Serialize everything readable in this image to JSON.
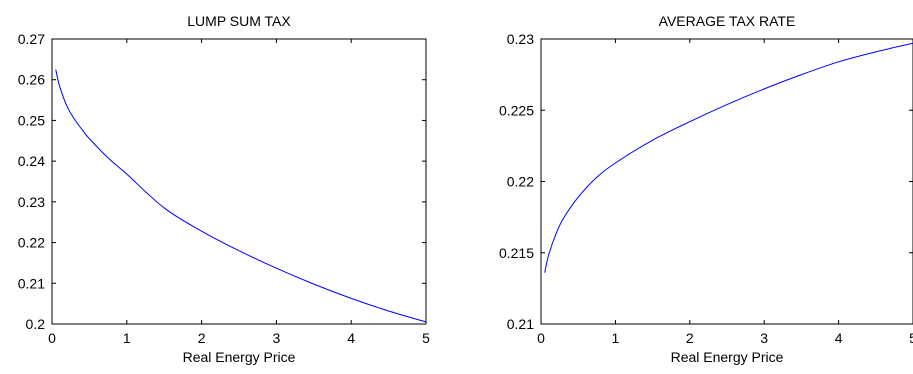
{
  "chart_data": [
    {
      "type": "line",
      "title": "LUMP SUM TAX",
      "xlabel": "Real Energy Price",
      "ylabel": "",
      "xlim": [
        0,
        5
      ],
      "ylim": [
        0.2,
        0.27
      ],
      "x_ticks": [
        0,
        1,
        2,
        3,
        4,
        5
      ],
      "x_tick_labels": [
        "0",
        "1",
        "2",
        "3",
        "4",
        "5"
      ],
      "y_ticks": [
        0.2,
        0.21,
        0.22,
        0.23,
        0.24,
        0.25,
        0.26,
        0.27
      ],
      "y_tick_labels": [
        "0.2",
        "0.21",
        "0.22",
        "0.23",
        "0.24",
        "0.25",
        "0.26",
        "0.27"
      ],
      "grid": false,
      "series": [
        {
          "color": "#0000ff",
          "x": [
            0.05,
            0.1,
            0.2,
            0.3,
            0.4,
            0.5,
            0.75,
            1,
            1.5,
            2,
            2.5,
            3,
            3.5,
            4,
            4.5,
            5
          ],
          "y": [
            0.2625,
            0.2585,
            0.2535,
            0.2503,
            0.2478,
            0.2455,
            0.2408,
            0.2368,
            0.2285,
            0.2228,
            0.218,
            0.2137,
            0.2098,
            0.2063,
            0.2032,
            0.2005
          ]
        }
      ]
    },
    {
      "type": "line",
      "title": "AVERAGE TAX RATE",
      "xlabel": "Real Energy Price",
      "ylabel": "",
      "xlim": [
        0,
        5
      ],
      "ylim": [
        0.21,
        0.23
      ],
      "x_ticks": [
        0,
        1,
        2,
        3,
        4,
        5
      ],
      "x_tick_labels": [
        "0",
        "1",
        "2",
        "3",
        "4",
        "5"
      ],
      "y_ticks": [
        0.21,
        0.215,
        0.22,
        0.225,
        0.23
      ],
      "y_tick_labels": [
        "0.21",
        "0.215",
        "0.22",
        "0.225",
        "0.23"
      ],
      "grid": false,
      "series": [
        {
          "color": "#0000ff",
          "x": [
            0.05,
            0.1,
            0.2,
            0.3,
            0.5,
            0.75,
            1,
            1.5,
            2,
            2.5,
            3,
            3.5,
            4,
            4.5,
            5
          ],
          "y": [
            0.2136,
            0.2148,
            0.2163,
            0.2174,
            0.2189,
            0.2203,
            0.2213,
            0.2229,
            0.2242,
            0.2254,
            0.2265,
            0.2275,
            0.2284,
            0.2291,
            0.2297
          ]
        }
      ]
    }
  ]
}
